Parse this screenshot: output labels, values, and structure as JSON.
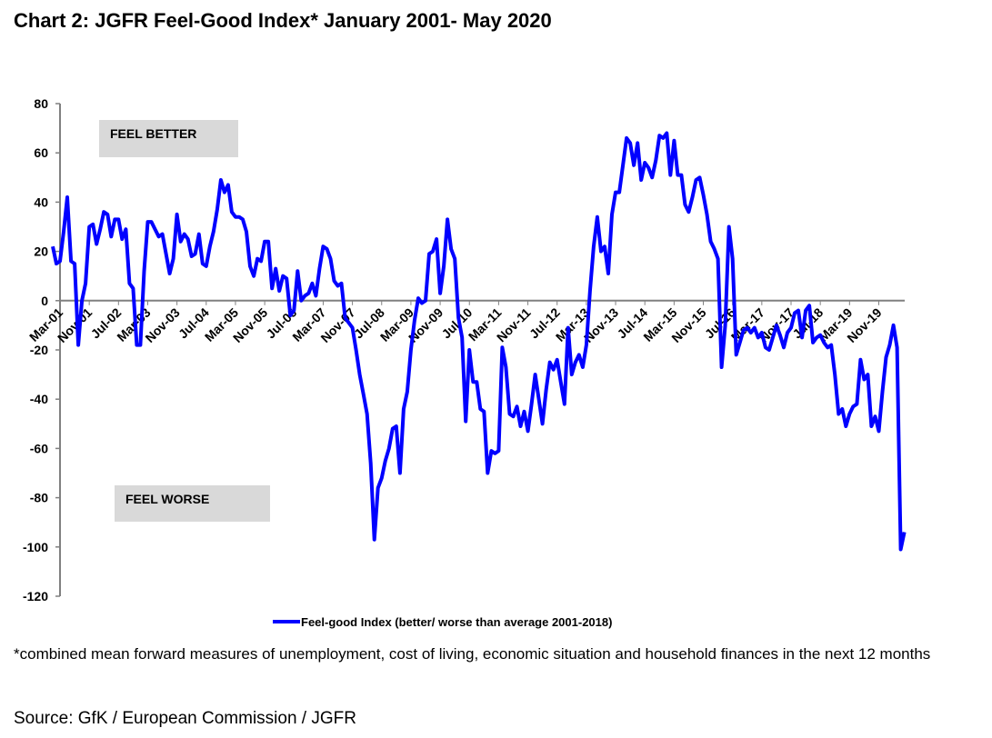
{
  "title": "Chart 2: JGFR Feel-Good Index* January 2001- May 2020",
  "footnote": "*combined mean forward measures of unemployment, cost of living, economic situation and household finances in the next 12 months",
  "source": "Source: GfK / European Commission / JGFR",
  "chart_data": {
    "type": "line",
    "title": "Chart 2: JGFR Feel-Good Index* January 2001- May 2020",
    "xlabel": "",
    "ylabel": "",
    "ylim": [
      -120,
      80
    ],
    "yticks": [
      80,
      60,
      40,
      20,
      0,
      -20,
      -40,
      -60,
      -80,
      -100,
      -120
    ],
    "x_start": "Jan-01",
    "x_end": "May-20",
    "x_frequency": "monthly",
    "xtick_labels": [
      "Mar-01",
      "Nov-01",
      "Jul-02",
      "Mar-03",
      "Nov-03",
      "Jul-04",
      "Mar-05",
      "Nov-05",
      "Jul-06",
      "Mar-07",
      "Nov-07",
      "Jul-08",
      "Mar-09",
      "Nov-09",
      "Jul-10",
      "Mar-11",
      "Nov-11",
      "Jul-12",
      "Mar-13",
      "Nov-13",
      "Jul-14",
      "Mar-15",
      "Nov-15",
      "Jul-16",
      "Mar-17",
      "Nov-17",
      "Jul-18",
      "Mar-19",
      "Nov-19"
    ],
    "annotations": [
      "FEEL BETTER",
      "FEEL WORSE"
    ],
    "legend": {
      "position": "bottom",
      "entries": [
        "Feel-good Index (better/ worse than average 2001-2018)"
      ]
    },
    "grid": false,
    "series": [
      {
        "name": "Feel-good Index (better/ worse than average 2001-2018)",
        "color": "#0000ff",
        "values": [
          22,
          15,
          16,
          28,
          42,
          16,
          15,
          -18,
          0,
          7,
          30,
          31,
          23,
          29,
          36,
          35,
          26,
          33,
          33,
          25,
          29,
          7,
          5,
          -18,
          -18,
          12,
          32,
          32,
          29,
          26,
          27,
          19,
          11,
          17,
          35,
          24,
          27,
          25,
          18,
          19,
          27,
          15,
          14,
          22,
          28,
          37,
          49,
          44,
          47,
          36,
          34,
          34,
          33,
          28,
          14,
          10,
          17,
          16,
          24,
          24,
          5,
          13,
          4,
          10,
          9,
          -6,
          -4,
          12,
          0,
          2,
          3,
          7,
          2,
          13,
          22,
          21,
          17,
          8,
          6,
          7,
          -7,
          -9,
          -11,
          -20,
          -30,
          -38,
          -46,
          -66,
          -97,
          -76,
          -72,
          -65,
          -60,
          -52,
          -51,
          -70,
          -44,
          -37,
          -20,
          -8,
          1,
          -1,
          0,
          19,
          20,
          25,
          3,
          14,
          33,
          21,
          17,
          -7,
          -15,
          -49,
          -20,
          -33,
          -33,
          -44,
          -45,
          -70,
          -61,
          -62,
          -61,
          -19,
          -27,
          -46,
          -47,
          -43,
          -51,
          -45,
          -53,
          -42,
          -30,
          -40,
          -50,
          -36,
          -25,
          -28,
          -24,
          -33,
          -42,
          -11,
          -30,
          -25,
          -22,
          -27,
          -18,
          4,
          22,
          34,
          20,
          22,
          11,
          35,
          44,
          44,
          55,
          66,
          64,
          55,
          64,
          49,
          56,
          54,
          50,
          57,
          67,
          66,
          68,
          51,
          65,
          51,
          51,
          39,
          36,
          42,
          49,
          50,
          43,
          35,
          24,
          21,
          17,
          -27,
          -10,
          30,
          17,
          -22,
          -17,
          -12,
          -11,
          -13,
          -11,
          -15,
          -13,
          -19,
          -20,
          -15,
          -10,
          -14,
          -19,
          -13,
          -11,
          -5,
          -4,
          -15,
          -4,
          -2,
          -17,
          -15,
          -14,
          -17,
          -19,
          -18,
          -30,
          -46,
          -44,
          -51,
          -46,
          -43,
          -42,
          -24,
          -32,
          -30,
          -51,
          -47,
          -53,
          -37,
          -23,
          -18,
          -10,
          -19,
          -101,
          -94
        ]
      }
    ]
  }
}
